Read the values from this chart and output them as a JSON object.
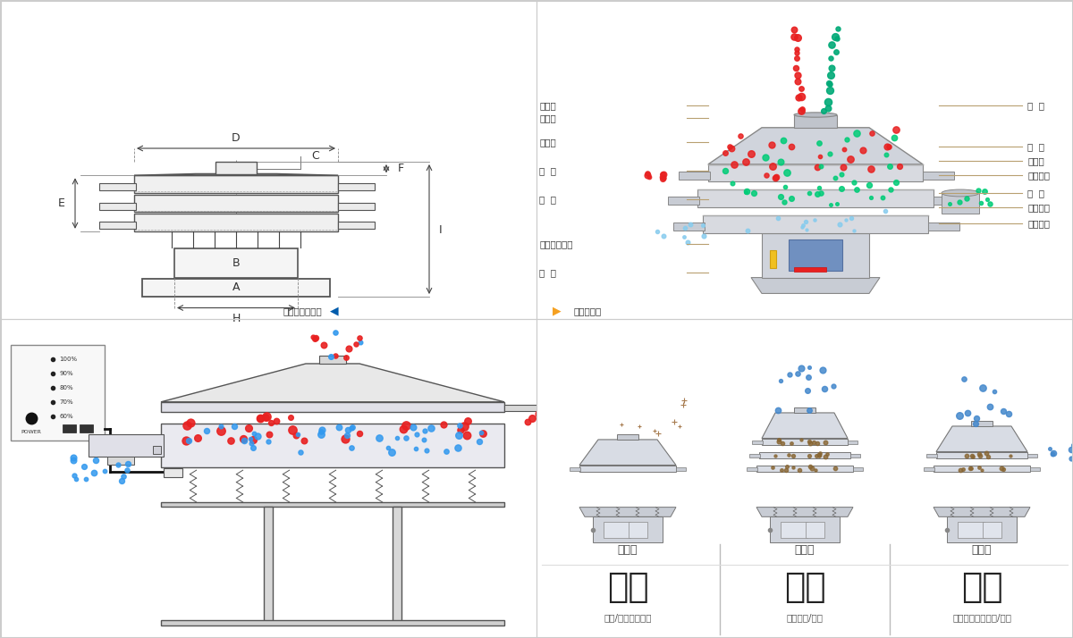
{
  "bg_color": "#ffffff",
  "border_color": "#cccccc",
  "panel_tl": {
    "labels_dim": [
      "D",
      "C",
      "F",
      "E",
      "B",
      "A",
      "H",
      "I"
    ],
    "nav_text": "外形尺寸示意图",
    "nav_arrow_color": "#005bac"
  },
  "panel_tr": {
    "left_labels": [
      "进料口",
      "防尘盖",
      "出料口",
      "束  环",
      "弹  簧",
      "运输固定螺栓",
      "机  座"
    ],
    "right_labels": [
      "筛  网",
      "网  架",
      "加重块",
      "上部重锤",
      "筛  盘",
      "振动电机",
      "下部重锤"
    ],
    "line_color": "#b8a070",
    "nav_text": "结构示意图",
    "nav_arrow_color": "#f5a020"
  },
  "panel_bl": {
    "controller_labels": [
      "100%",
      "90%",
      "80%",
      "70%",
      "60%"
    ],
    "controller_label": "POWER",
    "red_particle": "#e82020",
    "blue_particle": "#3399ee"
  },
  "panel_br": {
    "types": [
      "单层式",
      "三层式",
      "双层式"
    ],
    "functions": [
      "分级",
      "过滤",
      "除杂"
    ],
    "descriptions": [
      "颗粒/粉末准确分级",
      "去除异物/结块",
      "去除液体中的颗粒/异物"
    ],
    "func_fontsize": 32,
    "func_color": "#222222",
    "desc_color": "#555555",
    "type_color": "#444444",
    "divider_color": "#bbbbbb"
  }
}
